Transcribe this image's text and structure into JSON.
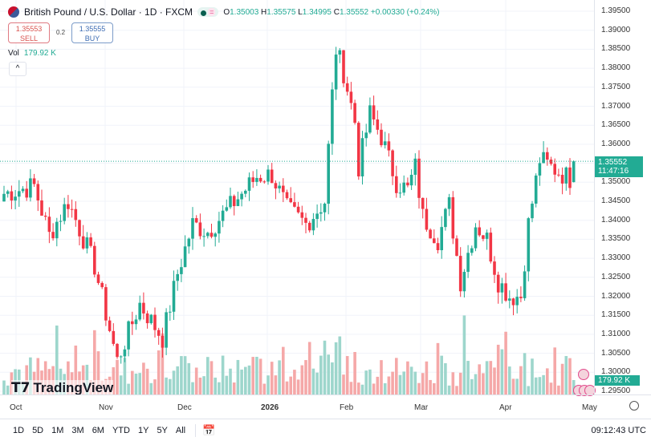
{
  "header": {
    "symbol": "British Pound / U.S. Dollar · 1D · FXCM",
    "open_label": "O",
    "open": "1.35003",
    "high_label": "H",
    "high": "1.35575",
    "low_label": "L",
    "low": "1.34995",
    "close_label": "C",
    "close": "1.35552",
    "change": "+0.00330 (+0.24%)",
    "eq_symbol": "="
  },
  "trade": {
    "sell_price": "1.35553",
    "sell_label": "SELL",
    "spread": "0.2",
    "buy_price": "1.35555",
    "buy_label": "BUY"
  },
  "volume": {
    "label": "Vol",
    "value": "179.92 K",
    "axis_value": "179.92 K"
  },
  "price_axis": {
    "ticks": [
      "1.39500",
      "1.39000",
      "1.38500",
      "1.38000",
      "1.37500",
      "1.37000",
      "1.36500",
      "1.36000",
      "1.35500",
      "1.35000",
      "1.34500",
      "1.34000",
      "1.33500",
      "1.33000",
      "1.32500",
      "1.32000",
      "1.31500",
      "1.31000",
      "1.30500",
      "1.30000",
      "1.29500"
    ],
    "last_price": "1.35552",
    "countdown": "11:47:16"
  },
  "time_axis": {
    "labels": [
      "Oct",
      "Nov",
      "Dec",
      "2026",
      "Feb",
      "Mar",
      "Apr",
      "May"
    ]
  },
  "ranges": [
    "1D",
    "5D",
    "1M",
    "3M",
    "6M",
    "YTD",
    "1Y",
    "5Y",
    "All"
  ],
  "clock": "09:12:43 UTC",
  "logo": "TradingView",
  "colors": {
    "up": "#22ab94",
    "down": "#f23645",
    "vol_up": "#9dd6cc",
    "vol_down": "#f5a8a8"
  },
  "chart_data": {
    "type": "candlestick",
    "ylim": [
      1.295,
      1.395
    ],
    "xlabels": [
      "Oct",
      "Nov",
      "Dec",
      "2026",
      "Feb",
      "Mar",
      "Apr",
      "May"
    ],
    "close_path_by_bar": [
      [
        0,
        1.347
      ],
      [
        8,
        1.349
      ],
      [
        12,
        1.336
      ],
      [
        17,
        1.345
      ],
      [
        24,
        1.328
      ],
      [
        30,
        1.303
      ],
      [
        36,
        1.318
      ],
      [
        42,
        1.309
      ],
      [
        46,
        1.326
      ],
      [
        50,
        1.339
      ],
      [
        54,
        1.337
      ],
      [
        63,
        1.347
      ],
      [
        67,
        1.3515
      ],
      [
        71,
        1.352
      ],
      [
        75,
        1.343
      ],
      [
        80,
        1.339
      ],
      [
        85,
        1.345
      ],
      [
        87,
        1.373
      ],
      [
        88,
        1.385
      ],
      [
        90,
        1.379
      ],
      [
        93,
        1.366
      ],
      [
        94,
        1.354
      ],
      [
        97,
        1.368
      ],
      [
        100,
        1.362
      ],
      [
        104,
        1.35
      ],
      [
        107,
        1.348
      ],
      [
        109,
        1.354
      ],
      [
        111,
        1.341
      ],
      [
        115,
        1.335
      ],
      [
        118,
        1.344
      ],
      [
        121,
        1.324
      ],
      [
        125,
        1.339
      ],
      [
        128,
        1.335
      ],
      [
        131,
        1.324
      ],
      [
        134,
        1.32
      ],
      [
        137,
        1.32
      ],
      [
        139,
        1.339
      ],
      [
        142,
        1.356
      ],
      [
        145,
        1.354
      ],
      [
        150,
        1.351
      ],
      [
        151,
        1.3555
      ]
    ],
    "last_bar": {
      "open": 1.35003,
      "high": 1.35575,
      "low": 1.34995,
      "close": 1.35552
    },
    "last_volume_k": 179.92
  }
}
